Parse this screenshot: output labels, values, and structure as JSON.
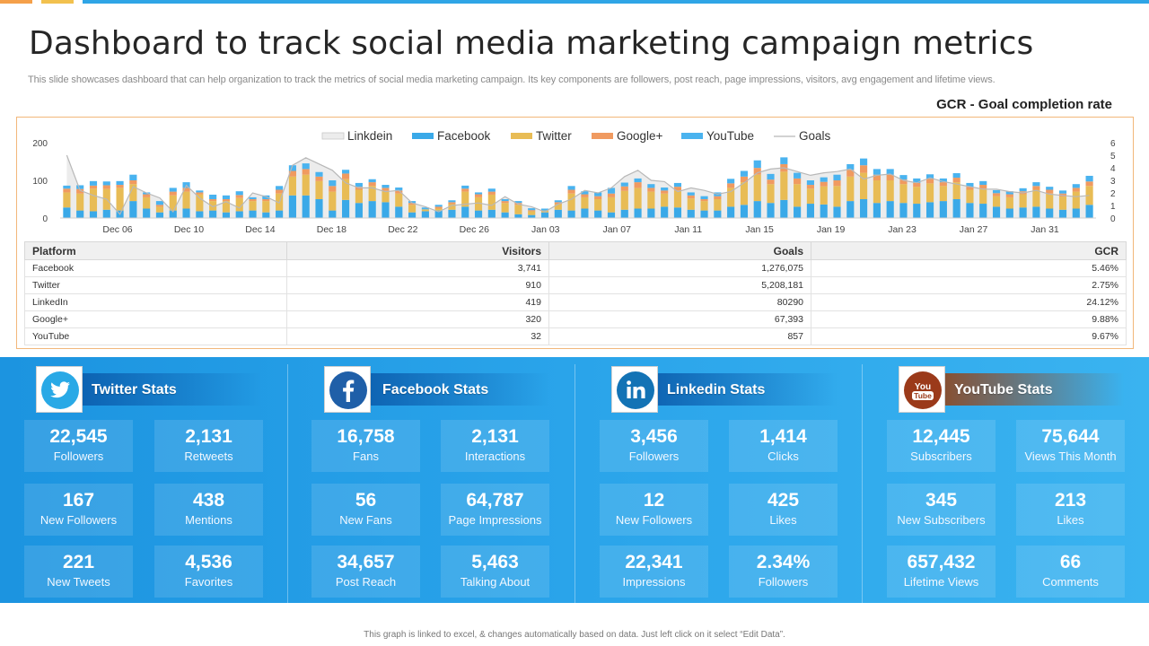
{
  "colors": {
    "linkedin_area": "#ececec",
    "facebook": "#3aa9e8",
    "twitter": "#e8bc55",
    "googleplus": "#f09a60",
    "youtube": "#4ab3ef",
    "goals_line": "#b8b8b8",
    "accent_orange": "#f5a04a",
    "accent_yellow": "#f2c14e",
    "accent_blue": "#2fa5e6"
  },
  "header": {
    "title": "Dashboard to track social media marketing campaign metrics",
    "subtitle": "This slide showcases dashboard that can help organization to track the metrics of social media marketing campaign. Its key components are followers, post reach, page impressions, visitors, avg engagement and lifetime views.",
    "gcr_label": "GCR - Goal completion rate"
  },
  "chart_data": {
    "type": "bar",
    "legend": [
      "Linkdein",
      "Facebook",
      "Twitter",
      "Google+",
      "YouTube",
      "Goals"
    ],
    "legend_position": "top-center",
    "x_tick_labels": [
      "Dec 06",
      "Dec 10",
      "Dec 14",
      "Dec 18",
      "Dec 22",
      "Dec 26",
      "Jan 03",
      "Jan 07",
      "Jan 11",
      "Jan 15",
      "Jan 19",
      "Jan 23",
      "Jan 27",
      "Jan 31"
    ],
    "y_left_ticks": [
      "0",
      "100",
      "200"
    ],
    "y_right_ticks": [
      "0",
      "1",
      "2",
      "3",
      "4",
      "5",
      "6"
    ],
    "ylim_left": [
      0,
      200
    ],
    "ylim_right": [
      0,
      6
    ],
    "series": [
      {
        "name": "Facebook",
        "values": [
          28,
          20,
          18,
          22,
          20,
          45,
          25,
          15,
          20,
          25,
          18,
          20,
          15,
          18,
          20,
          15,
          20,
          60,
          60,
          50,
          20,
          48,
          40,
          45,
          42,
          30,
          15,
          18,
          20,
          22,
          30,
          20,
          22,
          15,
          10,
          8,
          15,
          22,
          20,
          25,
          20,
          15,
          22,
          25,
          25,
          30,
          28,
          22,
          20,
          20,
          30,
          35,
          45,
          40,
          48,
          30,
          38,
          36,
          30,
          45,
          50,
          40,
          45,
          40,
          38,
          42,
          45,
          50,
          40,
          38,
          30,
          25,
          28,
          30,
          25,
          22,
          25,
          35
        ]
      },
      {
        "name": "Twitter",
        "values": [
          40,
          45,
          60,
          55,
          60,
          45,
          30,
          15,
          40,
          45,
          45,
          25,
          30,
          35,
          25,
          30,
          45,
          50,
          55,
          48,
          50,
          55,
          35,
          40,
          30,
          35,
          20,
          5,
          5,
          15,
          40,
          35,
          40,
          25,
          25,
          10,
          5,
          15,
          45,
          30,
          30,
          40,
          50,
          55,
          45,
          35,
          45,
          30,
          25,
          30,
          50,
          60,
          70,
          50,
          75,
          60,
          40,
          48,
          55,
          65,
          70,
          60,
          55,
          50,
          45,
          50,
          40,
          45,
          35,
          40,
          28,
          30,
          35,
          45,
          40,
          35,
          45,
          50
        ]
      },
      {
        "name": "Google+",
        "values": [
          10,
          12,
          8,
          10,
          8,
          10,
          8,
          5,
          10,
          10,
          5,
          5,
          5,
          8,
          5,
          5,
          10,
          15,
          15,
          12,
          15,
          15,
          8,
          10,
          8,
          8,
          5,
          0,
          5,
          5,
          8,
          8,
          8,
          5,
          5,
          3,
          0,
          5,
          10,
          8,
          8,
          10,
          12,
          15,
          10,
          8,
          10,
          8,
          5,
          8,
          12,
          15,
          18,
          12,
          20,
          15,
          10,
          12,
          15,
          18,
          20,
          15,
          15,
          12,
          10,
          12,
          10,
          12,
          8,
          10,
          8,
          8,
          8,
          10,
          10,
          8,
          10,
          12
        ]
      },
      {
        "name": "YouTube",
        "values": [
          8,
          10,
          12,
          10,
          10,
          15,
          5,
          10,
          10,
          15,
          5,
          12,
          10,
          10,
          5,
          10,
          10,
          15,
          15,
          12,
          15,
          10,
          10,
          8,
          8,
          8,
          5,
          5,
          5,
          5,
          8,
          5,
          8,
          5,
          5,
          5,
          5,
          5,
          10,
          8,
          10,
          15,
          10,
          10,
          10,
          8,
          10,
          8,
          8,
          10,
          12,
          15,
          20,
          15,
          18,
          15,
          12,
          12,
          15,
          15,
          18,
          15,
          15,
          12,
          12,
          12,
          10,
          12,
          10,
          10,
          8,
          8,
          8,
          10,
          8,
          8,
          10,
          15
        ]
      },
      {
        "name": "Goals",
        "values": [
          5,
          2.2,
          1.8,
          1.5,
          0.3,
          2.5,
          2.0,
          1.6,
          0.5,
          2.6,
          1.6,
          0.9,
          1.3,
          0.8,
          2.0,
          1.7,
          1.2,
          4.2,
          4.8,
          4.3,
          3.8,
          2.8,
          2.4,
          2.4,
          2.1,
          2.2,
          1.2,
          0.9,
          0.5,
          1.0,
          1.1,
          1.2,
          1.0,
          1.7,
          1.1,
          0.9,
          0.5,
          1.1,
          1.5,
          2.2,
          2.0,
          2.4,
          3.3,
          3.8,
          3.0,
          2.9,
          2.1,
          2.4,
          2.2,
          1.9,
          2.1,
          2.8,
          3.6,
          3.9,
          4.0,
          3.7,
          3.4,
          3.6,
          3.7,
          3.9,
          3.1,
          3.4,
          3.5,
          3.0,
          2.8,
          3.2,
          2.9,
          2.7,
          2.5,
          2.3,
          2.3,
          2.1,
          2.0,
          2.2,
          1.9,
          1.8,
          1.7,
          1.8
        ]
      }
    ],
    "grid": false
  },
  "table": {
    "headers": [
      "Platform",
      "Visitors",
      "Goals",
      "GCR"
    ],
    "rows": [
      [
        "Facebook",
        "3,741",
        "1,276,075",
        "5.46%"
      ],
      [
        "Twitter",
        "910",
        "5,208,181",
        "2.75%"
      ],
      [
        "LinkedIn",
        "419",
        "80290",
        "24.12%"
      ],
      [
        "Google+",
        "320",
        "67,393",
        "9.88%"
      ],
      [
        "YouTube",
        "32",
        "857",
        "9.67%"
      ]
    ]
  },
  "stats": [
    {
      "title": "Twitter Stats",
      "icon": "twitter-bird-icon",
      "tiles": [
        {
          "value": "22,545",
          "label": "Followers"
        },
        {
          "value": "2,131",
          "label": "Retweets"
        },
        {
          "value": "167",
          "label": "New Followers"
        },
        {
          "value": "438",
          "label": "Mentions"
        },
        {
          "value": "221",
          "label": "New Tweets"
        },
        {
          "value": "4,536",
          "label": "Favorites"
        }
      ]
    },
    {
      "title": "Facebook Stats",
      "icon": "facebook-icon",
      "tiles": [
        {
          "value": "16,758",
          "label": "Fans"
        },
        {
          "value": "2,131",
          "label": "Interactions"
        },
        {
          "value": "56",
          "label": "New Fans"
        },
        {
          "value": "64,787",
          "label": "Page Impressions"
        },
        {
          "value": "34,657",
          "label": "Post Reach"
        },
        {
          "value": "5,463",
          "label": "Talking About"
        }
      ]
    },
    {
      "title": "Linkedin Stats",
      "icon": "linkedin-icon",
      "tiles": [
        {
          "value": "3,456",
          "label": "Followers"
        },
        {
          "value": "1,414",
          "label": "Clicks"
        },
        {
          "value": "12",
          "label": "New Followers"
        },
        {
          "value": "425",
          "label": "Likes"
        },
        {
          "value": "22,341",
          "label": "Impressions"
        },
        {
          "value": "2.34%",
          "label": "Followers"
        }
      ]
    },
    {
      "title": "YouTube Stats",
      "icon": "youtube-icon",
      "tiles": [
        {
          "value": "12,445",
          "label": "Subscribers"
        },
        {
          "value": "75,644",
          "label": "Views This Month"
        },
        {
          "value": "345",
          "label": "New Subscribers"
        },
        {
          "value": "213",
          "label": "Likes"
        },
        {
          "value": "657,432",
          "label": "Lifetime Views"
        },
        {
          "value": "66",
          "label": "Comments"
        }
      ]
    }
  ],
  "footer": {
    "note": "This graph is linked to excel, & changes automatically based on data. Just left click on it select “Edit Data”."
  }
}
